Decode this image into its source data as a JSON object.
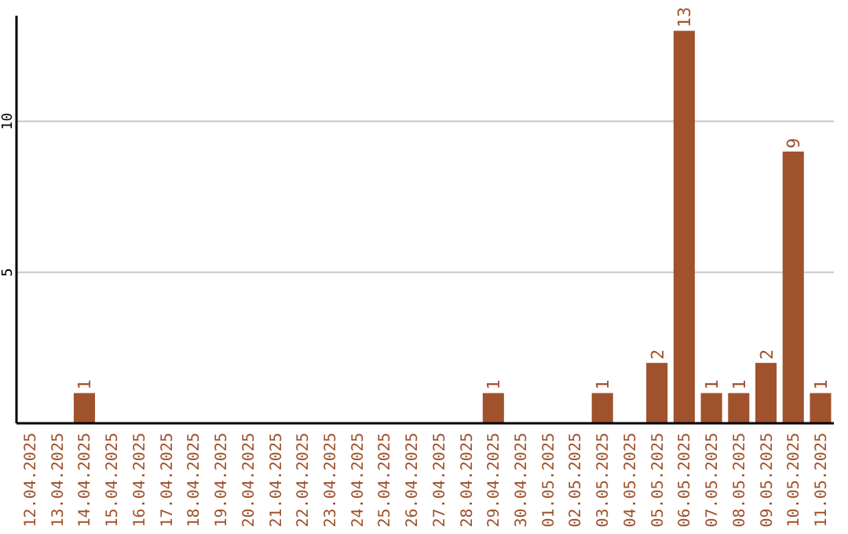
{
  "chart_data": {
    "type": "bar",
    "categories": [
      "12.04.2025",
      "13.04.2025",
      "14.04.2025",
      "15.04.2025",
      "16.04.2025",
      "17.04.2025",
      "18.04.2025",
      "19.04.2025",
      "20.04.2025",
      "21.04.2025",
      "22.04.2025",
      "23.04.2025",
      "24.04.2025",
      "25.04.2025",
      "26.04.2025",
      "27.04.2025",
      "28.04.2025",
      "29.04.2025",
      "30.04.2025",
      "01.05.2025",
      "02.05.2025",
      "03.05.2025",
      "04.05.2025",
      "05.05.2025",
      "06.05.2025",
      "07.05.2025",
      "08.05.2025",
      "09.05.2025",
      "10.05.2025",
      "11.05.2025"
    ],
    "values": [
      0,
      0,
      1,
      0,
      0,
      0,
      0,
      0,
      0,
      0,
      0,
      0,
      0,
      0,
      0,
      0,
      0,
      1,
      0,
      0,
      0,
      1,
      0,
      2,
      13,
      1,
      1,
      2,
      9,
      1
    ],
    "color": "#a0522d",
    "value_labels": [
      null,
      null,
      "1",
      null,
      null,
      null,
      null,
      null,
      null,
      null,
      null,
      null,
      null,
      null,
      null,
      null,
      null,
      "1",
      null,
      null,
      null,
      "1",
      null,
      "2",
      "13",
      "1",
      "1",
      "2",
      "9",
      "1"
    ],
    "ylim": [
      0,
      13.5
    ],
    "yticks": [
      5,
      10
    ],
    "grid": "y"
  }
}
